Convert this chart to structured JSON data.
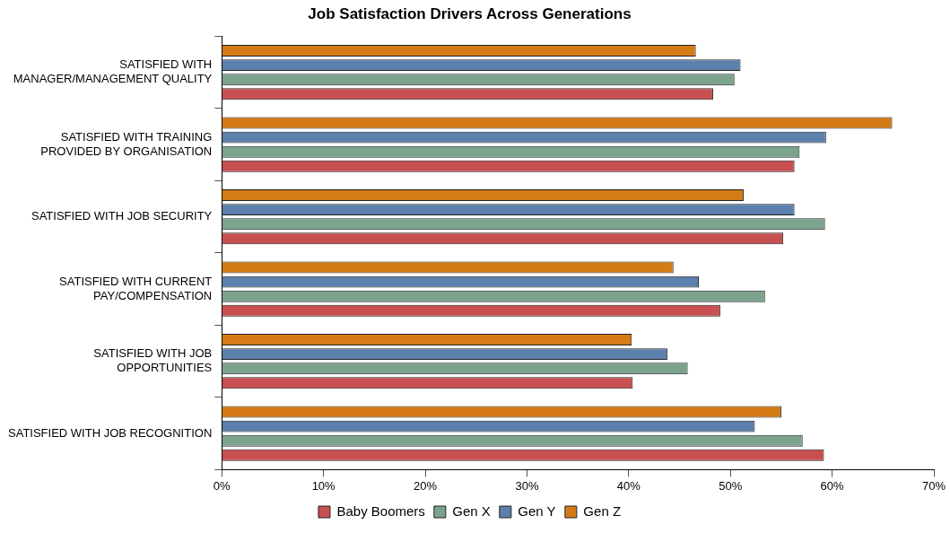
{
  "chart_data": {
    "type": "bar",
    "orientation": "horizontal",
    "title": "Job Satisfaction Drivers Across Generations",
    "categories": [
      "SATISFIED WITH MANAGER/MANAGEMENT QUALITY",
      "SATISFIED WITH TRAINING PROVIDED BY ORGANISATION",
      "SATISFIED WITH JOB SECURITY",
      "SATISFIED WITH CURRENT PAY/COMPENSATION",
      "SATISFIED WITH JOB OPPORTUNITIES",
      "SATISFIED WITH JOB RECOGNITION"
    ],
    "series": [
      {
        "name": "Baby Boomers",
        "color": "#c85050",
        "values": [
          48.3,
          56.3,
          55.2,
          49,
          40.4,
          59.2
        ]
      },
      {
        "name": "Gen X",
        "color": "#7ba38e",
        "values": [
          50.4,
          56.8,
          59.3,
          53.4,
          45.8,
          57.1
        ]
      },
      {
        "name": "Gen Y",
        "color": "#5b80ab",
        "values": [
          51,
          59.4,
          56.3,
          46.9,
          43.8,
          52.4
        ]
      },
      {
        "name": "Gen Z",
        "color": "#d47b15",
        "values": [
          46.6,
          65.9,
          51.3,
          44.4,
          40.3,
          55
        ]
      }
    ],
    "xlim": [
      0,
      70
    ],
    "xticks": [
      {
        "value": 0,
        "label": "0%"
      },
      {
        "value": 10,
        "label": "10%"
      },
      {
        "value": 20,
        "label": "20%"
      },
      {
        "value": 30,
        "label": "30%"
      },
      {
        "value": 40,
        "label": "40%"
      },
      {
        "value": 50,
        "label": "50%"
      },
      {
        "value": 60,
        "label": "60%"
      },
      {
        "value": 70,
        "label": "70%"
      }
    ],
    "legend": "bottom"
  }
}
